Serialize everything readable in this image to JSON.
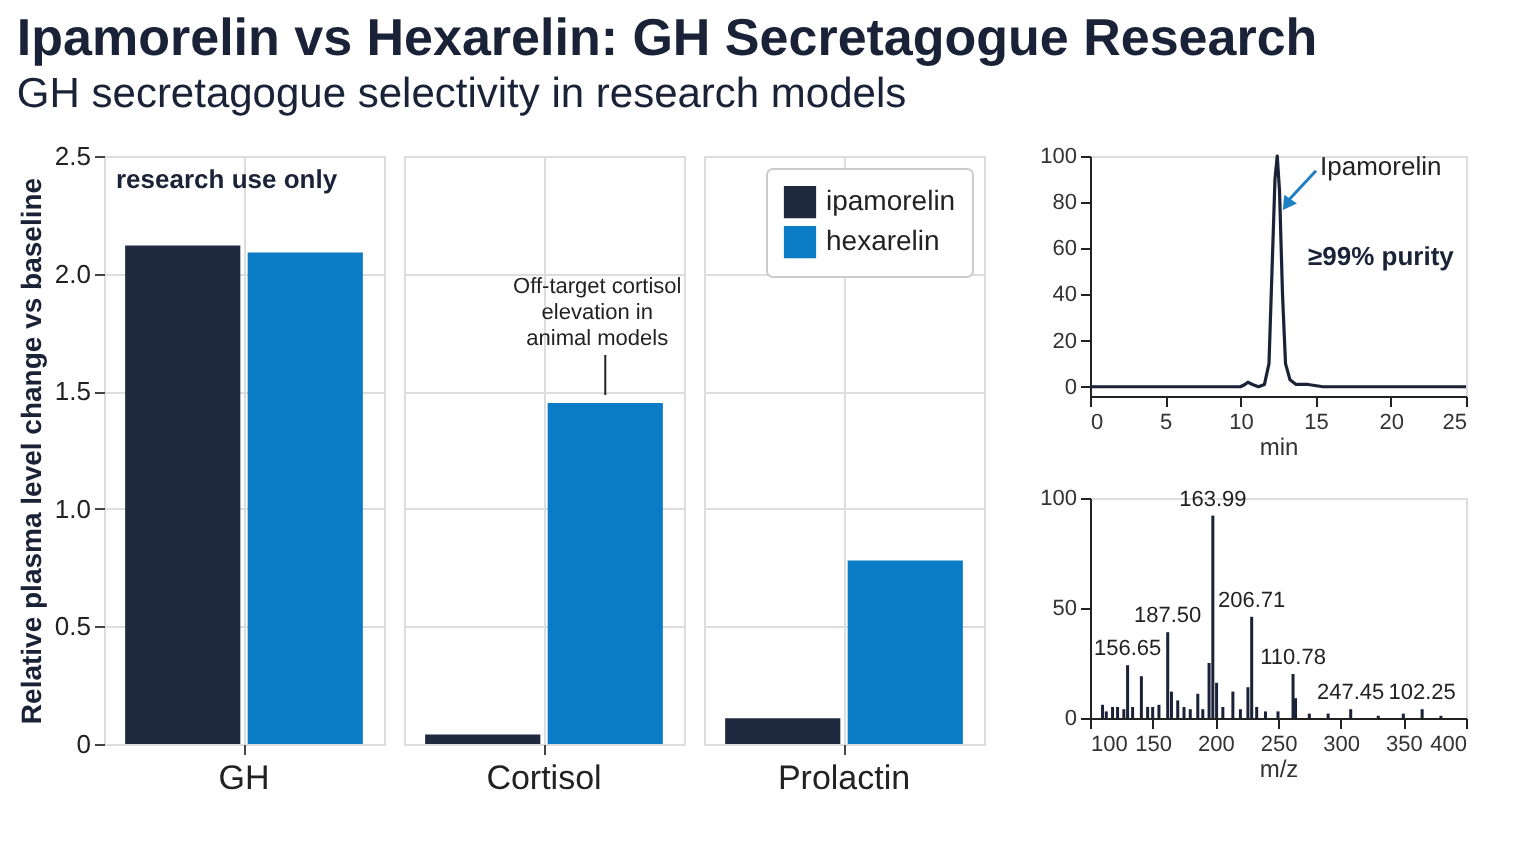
{
  "chart_data": [
    {
      "type": "bar",
      "title": "Ipamorelin vs Hexarelin: GH Secretagogue Research",
      "subtitle": "GH secretagogue selectivity in research models",
      "ylabel": "Relative plasma level change vs baseline",
      "categories": [
        "GH"
      ],
      "series": [
        {
          "color": "#1f2a40",
          "values": [
            2.12
          ]
        },
        {
          "color": "#0a7cc6",
          "values": [
            2.09
          ]
        }
      ],
      "ylim": [
        0,
        2.5
      ],
      "yticks": [
        0,
        0.5,
        {
          "value": 1,
          "label": "1.0"
        },
        1.5,
        {
          "value": 2,
          "label": "2.0"
        },
        2.5
      ],
      "grid": true,
      "annotations": [
        "research use only"
      ]
    },
    {
      "type": "bar",
      "categories": [
        "Cortisol"
      ],
      "series": [
        {
          "color": "#1f2a40",
          "values": [
            0.04
          ]
        },
        {
          "color": "#0a7cc6",
          "values": [
            1.45
          ]
        }
      ],
      "ylim": [
        0,
        2.5
      ],
      "yticks": [
        0,
        0.5,
        1,
        1.5,
        2,
        2.5
      ],
      "grid": true,
      "tick_labels": "x",
      "annotations": [
        {
          "text": "Off-target cortisol\nelevation in\nanimal models",
          "x": "Cortisol",
          "y": 1.45
        }
      ]
    },
    {
      "type": "bar",
      "categories": [
        "Prolactin"
      ],
      "series": [
        {
          "name": "ipamorelin",
          "color": "#1f2a40",
          "values": [
            0.11
          ]
        },
        {
          "name": "hexarelin",
          "color": "#0a7cc6",
          "values": [
            0.78
          ]
        }
      ],
      "ylim": [
        0,
        2.5
      ],
      "yticks": [
        0,
        0.5,
        1,
        1.5,
        2,
        2.5
      ],
      "grid": true,
      "tick_labels": "x",
      "legend": "top right"
    },
    {
      "type": "line",
      "xlabel": "min",
      "x": [
        0,
        5,
        10,
        10.3,
        10.5,
        10.8,
        11.2,
        11.6,
        11.9,
        12.1,
        12.3,
        12.45,
        12.6,
        12.8,
        13.0,
        13.3,
        13.7,
        14.5,
        15.5,
        25
      ],
      "series": [
        {
          "color": "#1a2238",
          "values": [
            0,
            0,
            0,
            1,
            2,
            1,
            0,
            1,
            10,
            50,
            90,
            100,
            85,
            40,
            10,
            3,
            1,
            1,
            0,
            0
          ]
        }
      ],
      "xlim": [
        0,
        25
      ],
      "xticks": [
        0,
        5,
        10,
        15,
        20,
        25
      ],
      "ylim": [
        -4,
        100
      ],
      "yticks": [
        0,
        20,
        40,
        60,
        80,
        100
      ],
      "annotations": [
        {
          "text": "Ipamorelin",
          "x": 12.9,
          "y": 78
        },
        "≥99% purity"
      ]
    },
    {
      "type": "bar",
      "xlabel": "m/z",
      "x": [
        110,
        113,
        118,
        122,
        127,
        130,
        134,
        141,
        146,
        150,
        155,
        162,
        165,
        170,
        175,
        180,
        186,
        190,
        195,
        198,
        201,
        206,
        214,
        220,
        226,
        229,
        233,
        240,
        250,
        262,
        264,
        275,
        290,
        308,
        330,
        350,
        365,
        380
      ],
      "series": [
        {
          "color": "#1a2238",
          "values": [
            6,
            3,
            5,
            5,
            4,
            24,
            5,
            19,
            5,
            5,
            6,
            39,
            12,
            8,
            5,
            4,
            11,
            4,
            25,
            92,
            16,
            5,
            12,
            4,
            14,
            46,
            5,
            3,
            3,
            20,
            9,
            2,
            2,
            4,
            1,
            2,
            4,
            1
          ]
        }
      ],
      "xlim": [
        100,
        400
      ],
      "xticks": [
        100,
        150,
        200,
        250,
        300,
        350,
        400
      ],
      "ylim": [
        0,
        100
      ],
      "yticks": [
        0,
        50,
        100
      ],
      "annotations": [
        {
          "text": "156.65",
          "x": 130,
          "y": 24
        },
        {
          "text": "187.50",
          "x": 162,
          "y": 39
        },
        {
          "text": "163.99",
          "x": 198,
          "y": 92
        },
        {
          "text": "206.71",
          "x": 229,
          "y": 46
        },
        {
          "text": "110.78",
          "x": 262,
          "y": 20
        },
        {
          "text": "247.45",
          "x": 308,
          "y": 4
        },
        {
          "text": "102.25",
          "x": 365,
          "y": 4
        }
      ]
    }
  ]
}
